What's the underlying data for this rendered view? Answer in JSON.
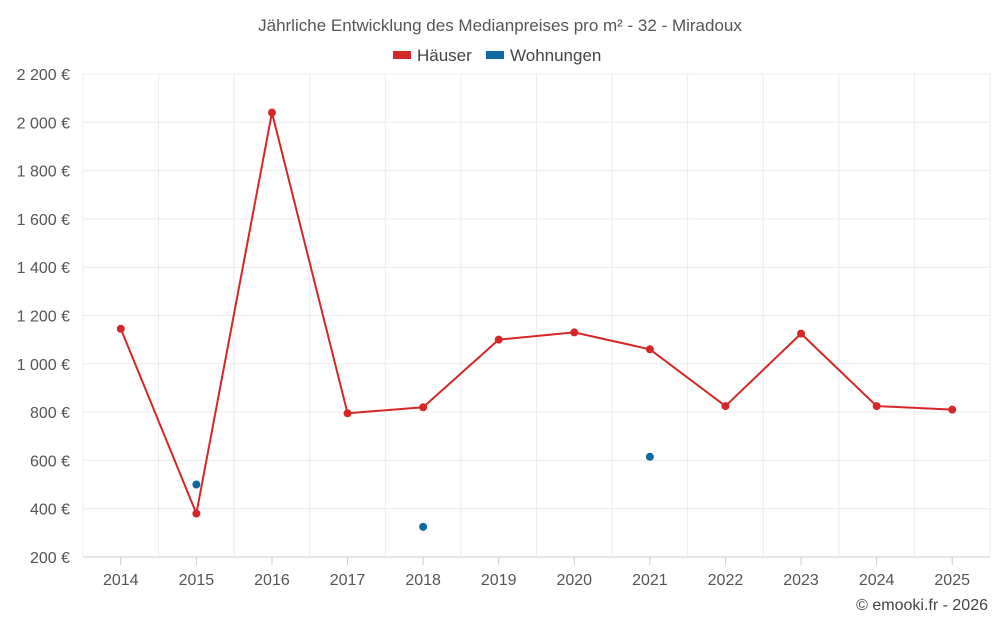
{
  "chart_data": {
    "type": "line",
    "title": "Jährliche Entwicklung des Medianpreises pro m² - 32 - Miradoux",
    "categories": [
      "2014",
      "2015",
      "2016",
      "2017",
      "2018",
      "2019",
      "2020",
      "2021",
      "2022",
      "2023",
      "2024",
      "2025"
    ],
    "y_tick_labels": [
      "200 €",
      "400 €",
      "600 €",
      "800 €",
      "1 000 €",
      "1 200 €",
      "1 400 €",
      "1 600 €",
      "1 800 €",
      "2 000 €",
      "2 200 €"
    ],
    "ylim": [
      200,
      2200
    ],
    "y_tick_step": 200,
    "grid": true,
    "legend_position": "top-center",
    "series": [
      {
        "name": "Häuser",
        "color": "#d62728",
        "style": "line-with-markers",
        "values": [
          1145,
          380,
          2040,
          795,
          820,
          1100,
          1130,
          1060,
          825,
          1125,
          825,
          810
        ]
      },
      {
        "name": "Wohnungen",
        "color": "#0a6aa1",
        "style": "markers-only",
        "values": [
          null,
          500,
          null,
          null,
          325,
          null,
          null,
          615,
          null,
          null,
          null,
          null
        ]
      }
    ],
    "credit": "© emooki.fr - 2026"
  }
}
